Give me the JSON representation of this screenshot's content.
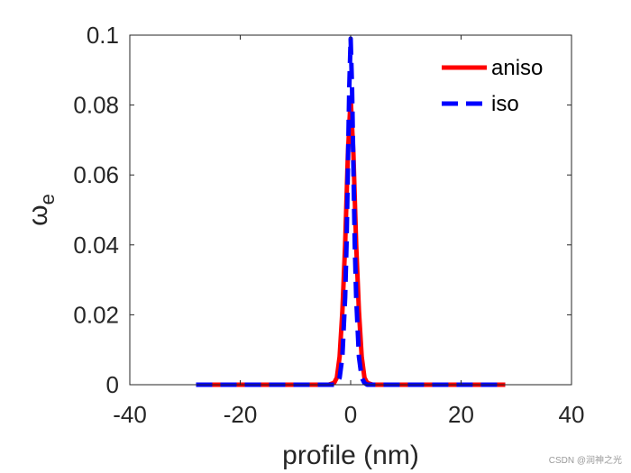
{
  "chart_data": {
    "type": "line",
    "title": "",
    "xlabel": "profile (nm)",
    "ylabel_main": "ω",
    "ylabel_sub": "e",
    "xlim": [
      -40,
      40
    ],
    "ylim": [
      0,
      0.1
    ],
    "xticks": [
      -40,
      -20,
      0,
      20,
      40
    ],
    "xtick_labels": [
      "-40",
      "-20",
      "0",
      "20",
      "40"
    ],
    "yticks": [
      0,
      0.02,
      0.04,
      0.06,
      0.08,
      0.1
    ],
    "ytick_labels": [
      "0",
      "0.02",
      "0.04",
      "0.06",
      "0.08",
      "0.1"
    ],
    "grid": false,
    "legend_position": "top-right",
    "series": [
      {
        "name": "aniso",
        "color": "#ff0000",
        "style": "solid",
        "x": [
          -28,
          -20,
          -10,
          -5,
          -4,
          -3,
          -2.5,
          -2,
          -1.5,
          -1,
          -0.5,
          0,
          0.5,
          1,
          1.5,
          2,
          2.5,
          3,
          4,
          5,
          10,
          20,
          28
        ],
        "y": [
          0,
          0,
          0,
          0,
          0,
          0.0005,
          0.002,
          0.008,
          0.021,
          0.04,
          0.066,
          0.082,
          0.066,
          0.04,
          0.021,
          0.008,
          0.002,
          0.0005,
          0,
          0,
          0,
          0,
          0
        ]
      },
      {
        "name": "iso",
        "color": "#0000ff",
        "style": "dashed",
        "x": [
          -28,
          -20,
          -10,
          -5,
          -3,
          -2.5,
          -2,
          -1.5,
          -1,
          -0.75,
          -0.5,
          -0.25,
          0,
          0.25,
          0.5,
          0.75,
          1,
          1.5,
          2,
          2.5,
          3,
          5,
          10,
          20,
          28
        ],
        "y": [
          0,
          0,
          0,
          0,
          0,
          0.0005,
          0.002,
          0.008,
          0.025,
          0.04,
          0.062,
          0.085,
          0.099,
          0.085,
          0.062,
          0.04,
          0.025,
          0.008,
          0.002,
          0.0005,
          0,
          0,
          0,
          0,
          0
        ]
      }
    ]
  },
  "watermark": "CSDN @润神之光"
}
